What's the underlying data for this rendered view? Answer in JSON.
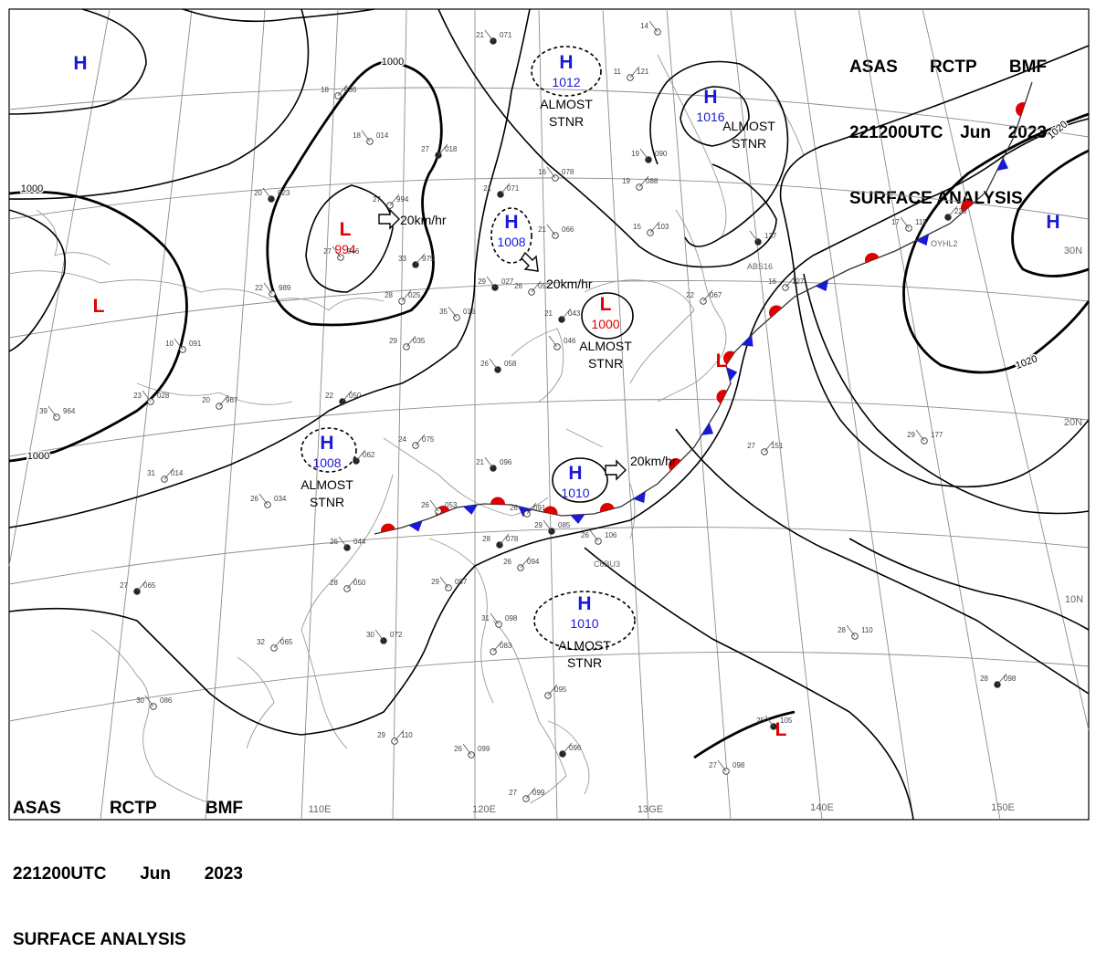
{
  "header": {
    "line1": [
      "ASAS",
      "RCTP",
      "BMF"
    ],
    "line2": [
      "221200UTC",
      "Jun",
      "2023"
    ],
    "line3": "SURFACE ANALYSIS"
  },
  "colors": {
    "high": "#1a1ad6",
    "low": "#e00000",
    "warm_front": "#e00000",
    "cold_front": "#1a1ad6",
    "isobar": "#000000",
    "graticule": "#888888",
    "coast": "#8a8a8a"
  },
  "longitude_labels": [
    "110E",
    "120E",
    "13GE",
    "140E",
    "150E"
  ],
  "latitude_labels": [
    "30N",
    "20N",
    "10N"
  ],
  "isobar_labels": [
    "1000",
    "1000",
    "1000",
    "1020",
    "1020"
  ],
  "pressure_systems": [
    {
      "type": "H",
      "value": ""
    },
    {
      "type": "H",
      "value": "1012",
      "note": [
        "ALMOST",
        "STNR"
      ]
    },
    {
      "type": "H",
      "value": "1016",
      "note": [
        "ALMOST",
        "STNR"
      ]
    },
    {
      "type": "H",
      "value": ""
    },
    {
      "type": "L",
      "value": "994"
    },
    {
      "type": "L",
      "value": ""
    },
    {
      "type": "H",
      "value": "1008"
    },
    {
      "type": "L",
      "value": "1000",
      "note": [
        "ALMOST",
        "STNR"
      ]
    },
    {
      "type": "H",
      "value": "1008",
      "note": [
        "ALMOST",
        "STNR"
      ]
    },
    {
      "type": "H",
      "value": "1010"
    },
    {
      "type": "H",
      "value": "1010",
      "note": [
        "ALMOST",
        "STNR"
      ]
    },
    {
      "type": "L",
      "value": ""
    },
    {
      "type": "L",
      "value": ""
    }
  ],
  "movements": [
    "20km/hr",
    "20km/hr",
    "20km/hr"
  ],
  "station_codes": [
    "OYHL2",
    "ABS16",
    "C6BU3"
  ],
  "stations": [
    {
      "t": "21",
      "p": "071"
    },
    {
      "t": "18",
      "p": "036"
    },
    {
      "t": "18",
      "p": "014"
    },
    {
      "t": "27",
      "p": "018"
    },
    {
      "t": "14",
      "p": ""
    },
    {
      "t": "11",
      "p": "121"
    },
    {
      "t": "19",
      "p": "090"
    },
    {
      "t": "19",
      "p": "088"
    },
    {
      "t": "16",
      "p": "078"
    },
    {
      "t": "21",
      "p": "071"
    },
    {
      "t": "21",
      "p": "066"
    },
    {
      "t": "15",
      "p": "103"
    },
    {
      "t": "20",
      "p": "023"
    },
    {
      "t": "27",
      "p": "994"
    },
    {
      "t": "27",
      "p": "946"
    },
    {
      "t": "33",
      "p": "975"
    },
    {
      "t": "22",
      "p": "989"
    },
    {
      "t": "28",
      "p": "025"
    },
    {
      "t": "29",
      "p": "027"
    },
    {
      "t": "26",
      "p": "052"
    },
    {
      "t": "35",
      "p": "016"
    },
    {
      "t": "21",
      "p": "043"
    },
    {
      "t": "",
      "p": "046"
    },
    {
      "t": "22",
      "p": "067"
    },
    {
      "t": "",
      "p": "137"
    },
    {
      "t": "16",
      "p": "127"
    },
    {
      "t": "17",
      "p": "115"
    },
    {
      "t": "",
      "p": "220"
    },
    {
      "t": "10",
      "p": "091"
    },
    {
      "t": "29",
      "p": "035"
    },
    {
      "t": "26",
      "p": "058"
    },
    {
      "t": "20",
      "p": "967"
    },
    {
      "t": "23",
      "p": "028"
    },
    {
      "t": "22",
      "p": "050"
    },
    {
      "t": "39",
      "p": "964"
    },
    {
      "t": "24",
      "p": "075"
    },
    {
      "t": "21",
      "p": "096"
    },
    {
      "t": "31",
      "p": "014"
    },
    {
      "t": "26",
      "p": "034"
    },
    {
      "t": "",
      "p": "062"
    },
    {
      "t": "26",
      "p": "053"
    },
    {
      "t": "26",
      "p": "091"
    },
    {
      "t": "29",
      "p": "085"
    },
    {
      "t": "27",
      "p": "151"
    },
    {
      "t": "29",
      "p": "177"
    },
    {
      "t": "28",
      "p": "078"
    },
    {
      "t": "26",
      "p": "106"
    },
    {
      "t": "26",
      "p": "094"
    },
    {
      "t": "26",
      "p": "044"
    },
    {
      "t": "28",
      "p": "050"
    },
    {
      "t": "29",
      "p": "087"
    },
    {
      "t": "27",
      "p": "065"
    },
    {
      "t": "31",
      "p": "098"
    },
    {
      "t": "",
      "p": "083"
    },
    {
      "t": "30",
      "p": "072"
    },
    {
      "t": "32",
      "p": "065"
    },
    {
      "t": "28",
      "p": "110"
    },
    {
      "t": "28",
      "p": "098"
    },
    {
      "t": "30",
      "p": "086"
    },
    {
      "t": "",
      "p": "095"
    },
    {
      "t": "25",
      "p": "105"
    },
    {
      "t": "29",
      "p": "110"
    },
    {
      "t": "26",
      "p": "099"
    },
    {
      "t": "",
      "p": "096"
    },
    {
      "t": "27",
      "p": "098"
    },
    {
      "t": "27",
      "p": "099"
    }
  ]
}
